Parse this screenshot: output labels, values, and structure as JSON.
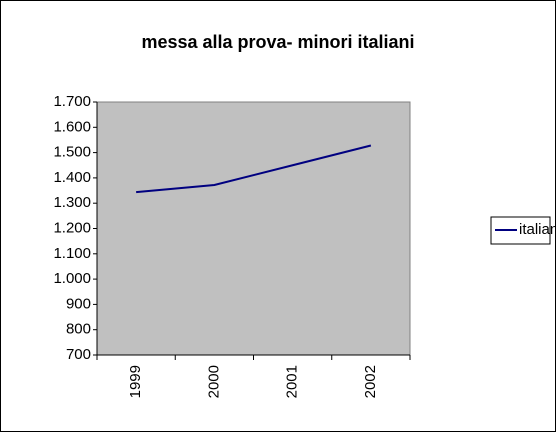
{
  "chart_data": {
    "type": "line",
    "title": "messa alla prova- minori italiani",
    "categories": [
      "1999",
      "2000",
      "2001",
      "2002"
    ],
    "series": [
      {
        "name": "italiani",
        "color": "#000080",
        "values": [
          1344,
          1372,
          1450,
          1528
        ]
      }
    ],
    "ylim": [
      700,
      1700
    ],
    "yticks": [
      700,
      800,
      900,
      {
        "value": 1000,
        "label": "1.000"
      },
      {
        "value": 1100,
        "label": "1.100"
      },
      {
        "value": 1200,
        "label": "1.200"
      },
      {
        "value": 1300,
        "label": "1.300"
      },
      {
        "value": 1400,
        "label": "1.400"
      },
      {
        "value": 1500,
        "label": "1.500"
      },
      {
        "value": 1600,
        "label": "1.600"
      },
      {
        "value": 1700,
        "label": "1.700"
      }
    ],
    "plot_background": "#c0c0c0",
    "legend": "right"
  }
}
